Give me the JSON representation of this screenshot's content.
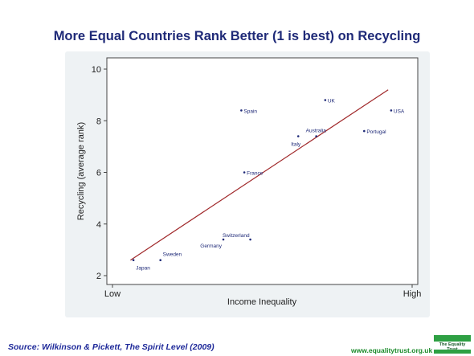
{
  "chart_data": {
    "type": "scatter",
    "title": "More Equal Countries Rank Better (1 is best) on Recycling",
    "xlabel": "Income Inequality",
    "ylabel": "Recycling (average rank)",
    "x_tick_labels": [
      "Low",
      "High"
    ],
    "xlim": [
      0,
      100
    ],
    "ylim": [
      2,
      10
    ],
    "y_ticks": [
      2,
      4,
      6,
      8,
      10
    ],
    "grid": false,
    "points": [
      {
        "label": "Japan",
        "x": 7,
        "y": 2.6
      },
      {
        "label": "Sweden",
        "x": 16,
        "y": 2.6
      },
      {
        "label": "Germany",
        "x": 37,
        "y": 3.4
      },
      {
        "label": "Switzerland",
        "x": 46,
        "y": 3.4
      },
      {
        "label": "France",
        "x": 44,
        "y": 6.0
      },
      {
        "label": "Spain",
        "x": 43,
        "y": 8.4
      },
      {
        "label": "Italy",
        "x": 62,
        "y": 7.4
      },
      {
        "label": "Australia",
        "x": 68,
        "y": 7.4
      },
      {
        "label": "UK",
        "x": 71,
        "y": 8.8
      },
      {
        "label": "Portugal",
        "x": 84,
        "y": 7.6
      },
      {
        "label": "USA",
        "x": 93,
        "y": 8.4
      }
    ],
    "fit_line": {
      "x": [
        6,
        92
      ],
      "y": [
        2.6,
        9.2
      ]
    }
  },
  "footer": {
    "source": "Source: Wilkinson & Pickett, The Spirit Level (2009)",
    "website": "www.equalitytrust.org.uk",
    "logo_text": "The Equality Trust"
  },
  "colors": {
    "title": "#1f2a78",
    "fit_line": "#a0282a",
    "points": "#1f2a78",
    "axis": "#333333"
  }
}
